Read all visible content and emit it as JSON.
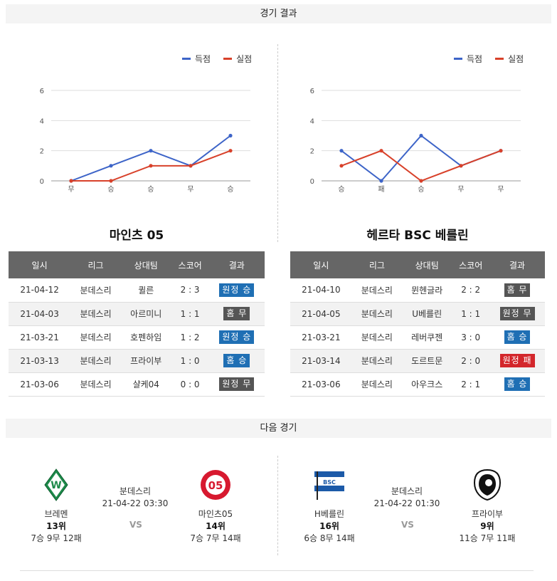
{
  "results_header": "경기 결과",
  "next_header": "다음 경기",
  "legend": {
    "scored": "득점",
    "conceded": "실점",
    "scored_color": "#3d64c8",
    "conceded_color": "#d8412a"
  },
  "chart_data": [
    {
      "type": "line",
      "categories": [
        "무",
        "승",
        "승",
        "무",
        "승"
      ],
      "ylim": [
        0,
        6
      ],
      "yticks": [
        "0",
        "2",
        "4",
        "6"
      ],
      "series": [
        {
          "name": "득점",
          "values": [
            0,
            1,
            2,
            1,
            3
          ]
        },
        {
          "name": "실점",
          "values": [
            0,
            0,
            1,
            1,
            2
          ]
        }
      ]
    },
    {
      "type": "line",
      "categories": [
        "승",
        "패",
        "승",
        "무",
        "무"
      ],
      "ylim": [
        0,
        6
      ],
      "yticks": [
        "0",
        "2",
        "4",
        "6"
      ],
      "series": [
        {
          "name": "득점",
          "values": [
            2,
            0,
            3,
            1,
            2
          ]
        },
        {
          "name": "실점",
          "values": [
            1,
            2,
            0,
            1,
            2
          ]
        }
      ]
    }
  ],
  "headers": [
    "일시",
    "리그",
    "상대팀",
    "스코어",
    "결과"
  ],
  "left_team": {
    "name": "마인츠 05",
    "rows": [
      {
        "date": "21-04-12",
        "league": "분데스리",
        "opponent": "퀼른",
        "score": "2 : 3",
        "result": "원정 승",
        "color": "blue"
      },
      {
        "date": "21-04-03",
        "league": "분데스리",
        "opponent": "아르미니",
        "score": "1 : 1",
        "result": "홈 무",
        "color": "gray"
      },
      {
        "date": "21-03-21",
        "league": "분데스리",
        "opponent": "호펜하임",
        "score": "1 : 2",
        "result": "원정 승",
        "color": "blue"
      },
      {
        "date": "21-03-13",
        "league": "분데스리",
        "opponent": "프라이부",
        "score": "1 : 0",
        "result": "홈 승",
        "color": "blue"
      },
      {
        "date": "21-03-06",
        "league": "분데스리",
        "opponent": "샬케04",
        "score": "0 : 0",
        "result": "원정 무",
        "color": "gray"
      }
    ]
  },
  "right_team": {
    "name": "헤르타 BSC 베를린",
    "rows": [
      {
        "date": "21-04-10",
        "league": "분데스리",
        "opponent": "뮌헨글라",
        "score": "2 : 2",
        "result": "홈 무",
        "color": "gray"
      },
      {
        "date": "21-04-05",
        "league": "분데스리",
        "opponent": "U베를린",
        "score": "1 : 1",
        "result": "원정 무",
        "color": "gray"
      },
      {
        "date": "21-03-21",
        "league": "분데스리",
        "opponent": "레버쿠젠",
        "score": "3 : 0",
        "result": "홈 승",
        "color": "blue"
      },
      {
        "date": "21-03-14",
        "league": "분데스리",
        "opponent": "도르트문",
        "score": "2 : 0",
        "result": "원정 패",
        "color": "red"
      },
      {
        "date": "21-03-06",
        "league": "분데스리",
        "opponent": "아우크스",
        "score": "2 : 1",
        "result": "홈 승",
        "color": "blue"
      }
    ]
  },
  "next_matches": [
    {
      "home": {
        "name": "브레멘",
        "rank": "13위",
        "record": "7승 9무 12패"
      },
      "away": {
        "name": "마인츠05",
        "rank": "14위",
        "record": "7승 7무 14패"
      },
      "league": "분데스리",
      "datetime": "21-04-22 03:30",
      "vs": "VS"
    },
    {
      "home": {
        "name": "H베를린",
        "rank": "16위",
        "record": "6승 8무 14패"
      },
      "away": {
        "name": "프라이부",
        "rank": "9위",
        "record": "11승 7무 11패"
      },
      "league": "분데스리",
      "datetime": "21-04-22 01:30",
      "vs": "VS"
    }
  ]
}
